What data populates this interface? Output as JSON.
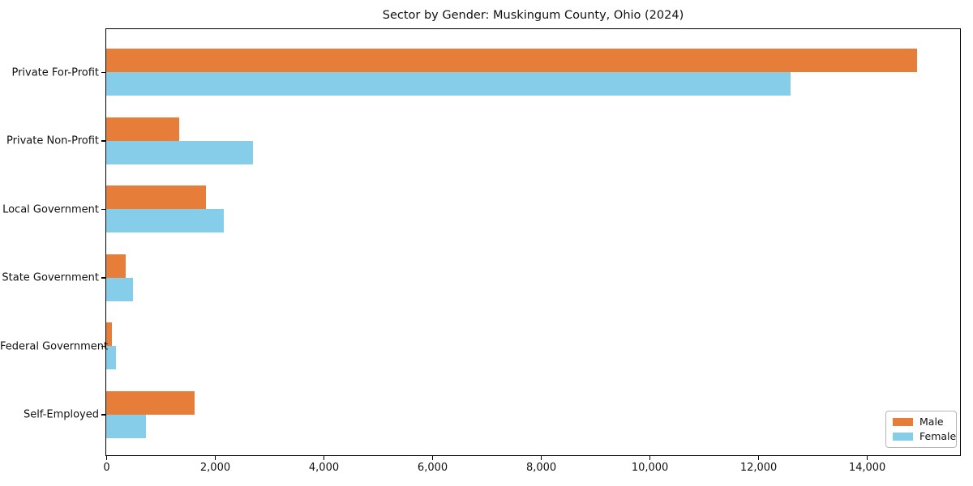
{
  "chart_data": {
    "type": "bar",
    "orientation": "horizontal",
    "title": "Sector by Gender: Muskingum County, Ohio (2024)",
    "categories": [
      "Private For-Profit",
      "Private Non-Profit",
      "Local Government",
      "State Government",
      "Federal Government",
      "Self-Employed"
    ],
    "series": [
      {
        "name": "Male",
        "color": "#E67E3A",
        "values": [
          14920,
          1350,
          1840,
          360,
          105,
          1620
        ]
      },
      {
        "name": "Female",
        "color": "#85CDE8",
        "values": [
          12590,
          2700,
          2170,
          490,
          180,
          730
        ]
      }
    ],
    "xlabel": "",
    "ylabel": "",
    "xlim": [
      0,
      15700
    ],
    "x_ticks": [
      0,
      2000,
      4000,
      6000,
      8000,
      10000,
      12000,
      14000
    ],
    "x_tick_labels": [
      "0",
      "2,000",
      "4,000",
      "6,000",
      "8,000",
      "10,000",
      "12,000",
      "14,000"
    ],
    "grid": false,
    "legend": {
      "position": "lower right"
    },
    "colors": {
      "axis": "#000000",
      "text": "#111111",
      "background": "#ffffff"
    }
  }
}
